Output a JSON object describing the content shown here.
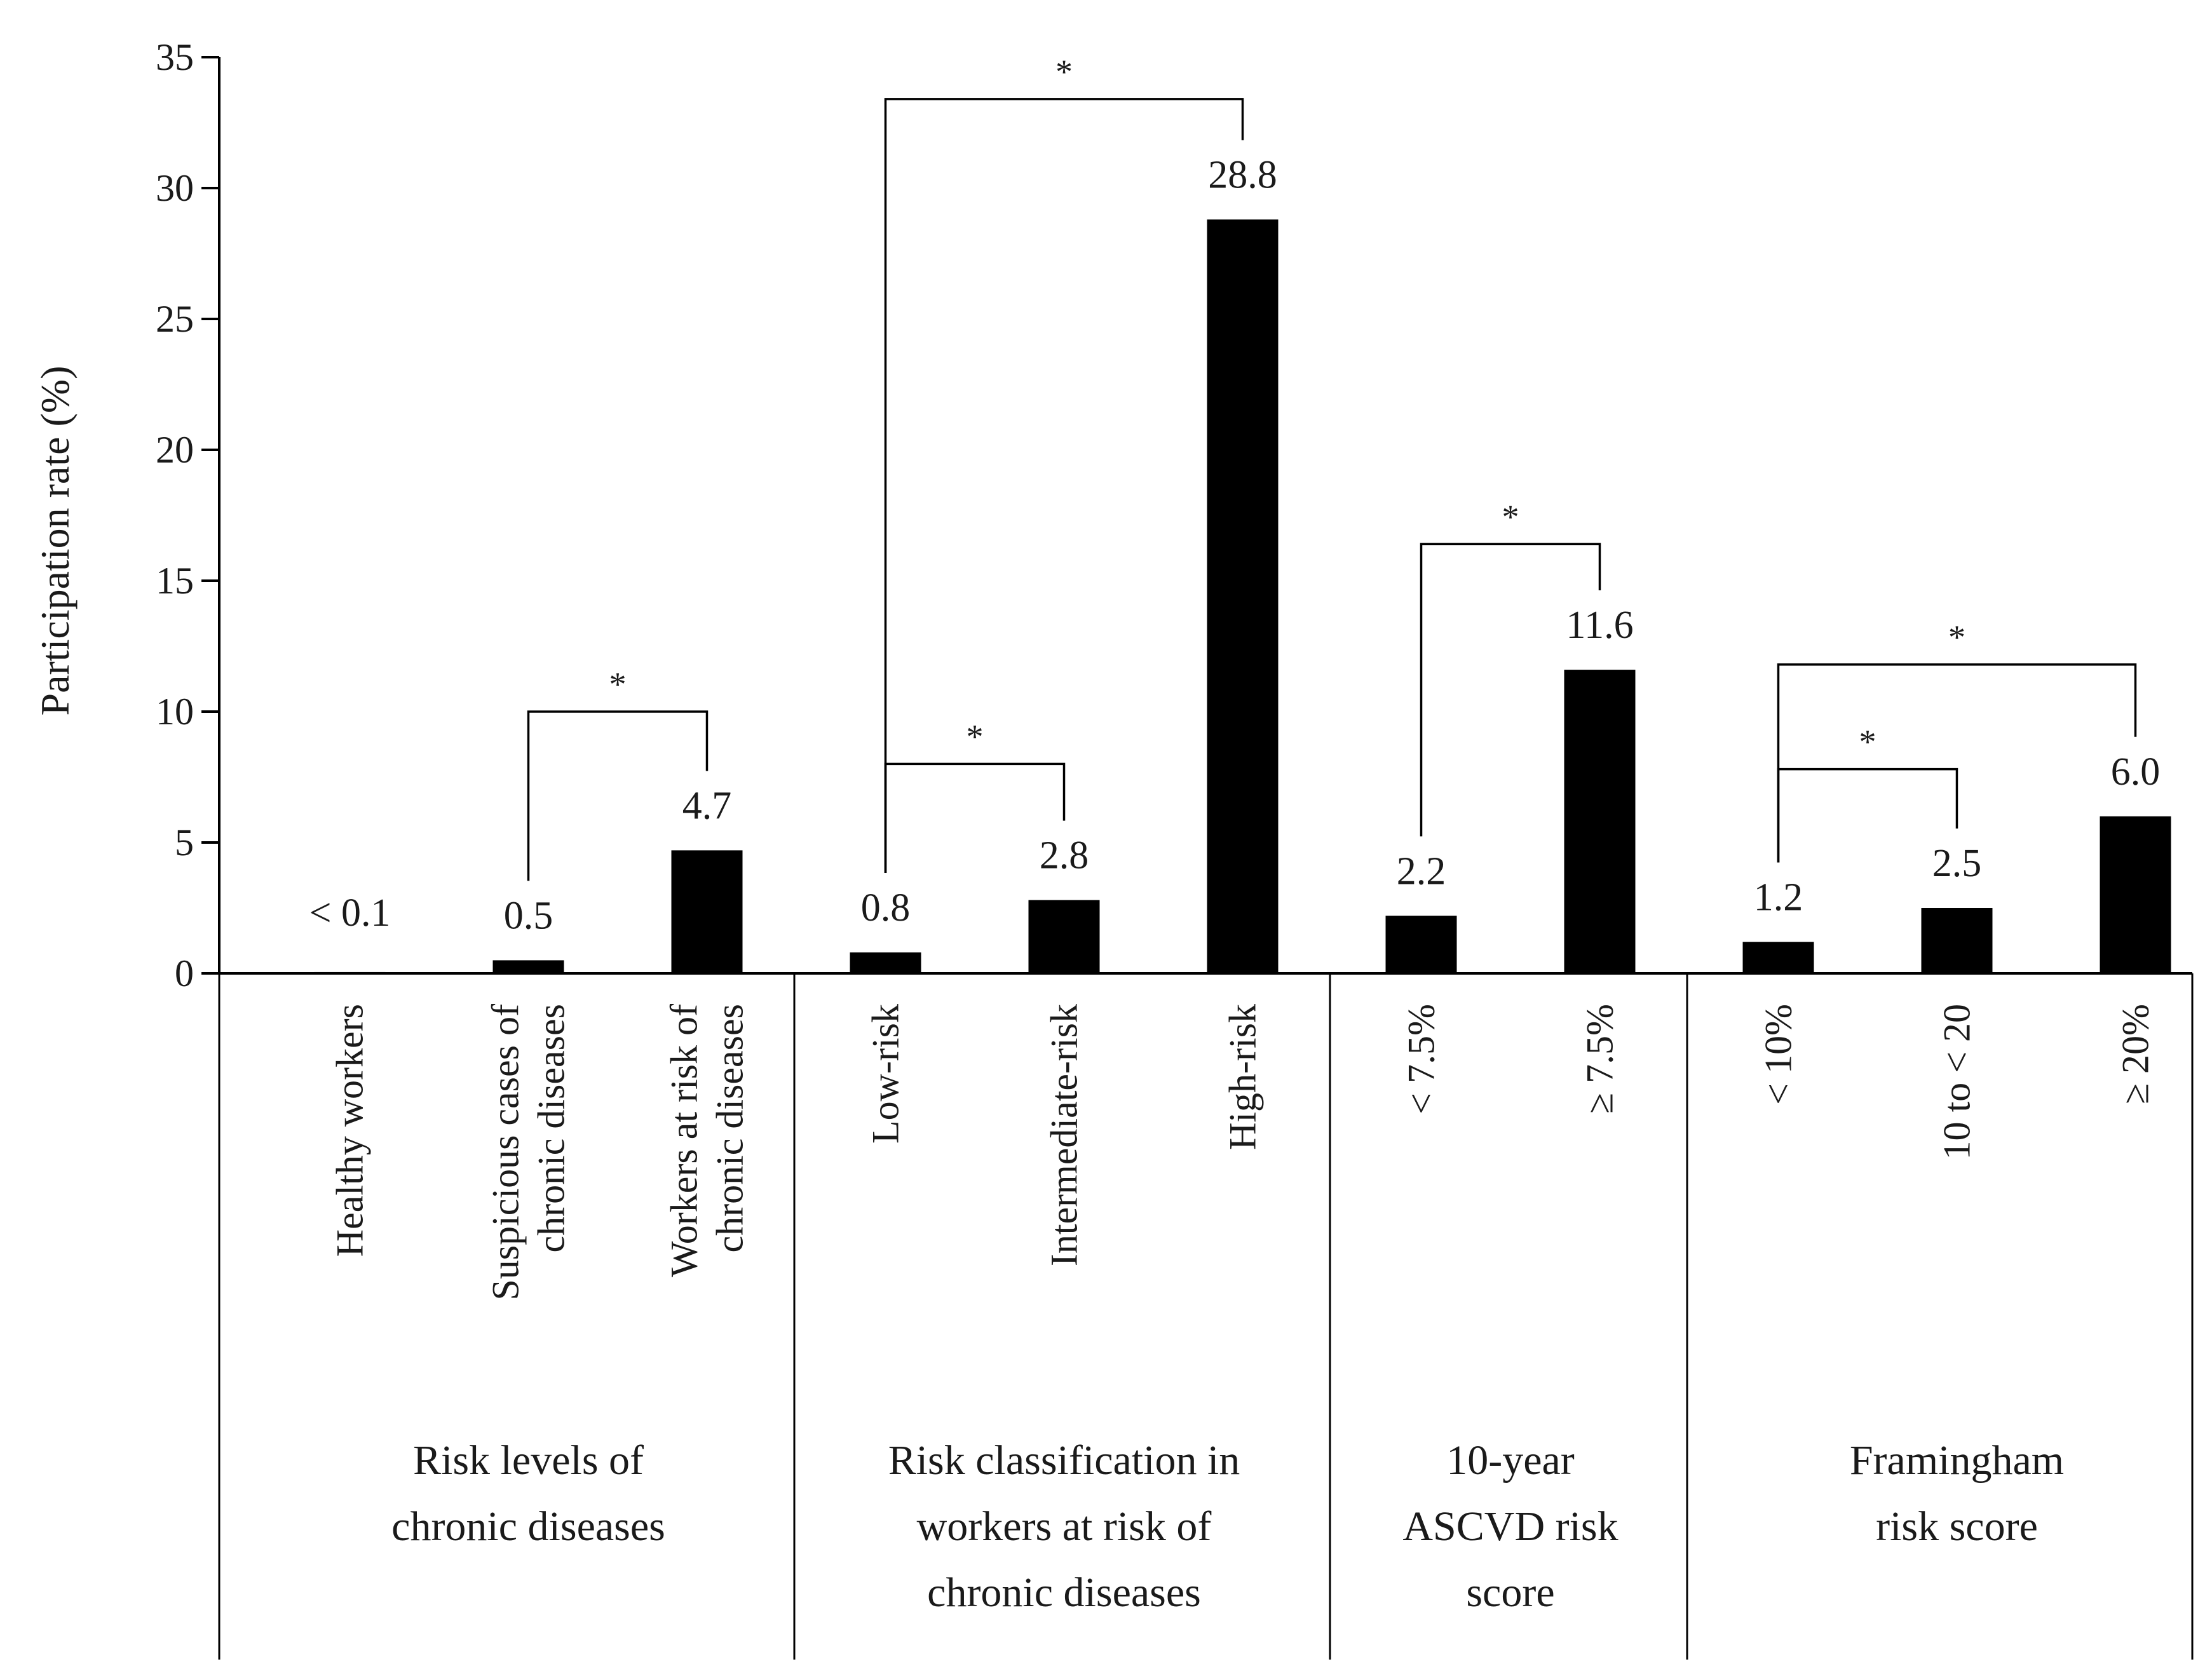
{
  "chart_data": {
    "type": "bar",
    "ylabel": "Participation rate (%)",
    "ylim": [
      0,
      35
    ],
    "yticks": [
      0,
      5,
      10,
      15,
      20,
      25,
      30,
      35
    ],
    "groups": [
      {
        "label_lines": [
          "Risk levels of",
          "chronic diseases"
        ],
        "bars": [
          {
            "label_lines": [
              "Healthy workers"
            ],
            "value": 0.05,
            "value_label": "< 0.1"
          },
          {
            "label_lines": [
              "Suspicious cases of",
              "chronic diseases"
            ],
            "value": 0.5,
            "value_label": "0.5"
          },
          {
            "label_lines": [
              "Workers at risk of",
              "chronic diseases"
            ],
            "value": 4.7,
            "value_label": "4.7"
          }
        ]
      },
      {
        "label_lines": [
          "Risk classification in",
          "workers at risk of",
          "chronic diseases"
        ],
        "bars": [
          {
            "label_lines": [
              "Low-risk"
            ],
            "value": 0.8,
            "value_label": "0.8"
          },
          {
            "label_lines": [
              "Intermediate-risk"
            ],
            "value": 2.8,
            "value_label": "2.8"
          },
          {
            "label_lines": [
              "High-risk"
            ],
            "value": 28.8,
            "value_label": "28.8"
          }
        ]
      },
      {
        "label_lines": [
          "10-year",
          "ASCVD risk",
          "score"
        ],
        "bars": [
          {
            "label_lines": [
              "< 7.5%"
            ],
            "value": 2.2,
            "value_label": "2.2"
          },
          {
            "label_lines": [
              "≥ 7.5%"
            ],
            "value": 11.6,
            "value_label": "11.6"
          }
        ]
      },
      {
        "label_lines": [
          "Framingham",
          "risk score"
        ],
        "bars": [
          {
            "label_lines": [
              "< 10%"
            ],
            "value": 1.2,
            "value_label": "1.2"
          },
          {
            "label_lines": [
              "10 to < 20"
            ],
            "value": 2.5,
            "value_label": "2.5"
          },
          {
            "label_lines": [
              "≥ 20%"
            ],
            "value": 6.0,
            "value_label": "6.0"
          }
        ]
      }
    ],
    "significance": [
      {
        "from": [
          0,
          1
        ],
        "to": [
          0,
          2
        ],
        "level": 10,
        "label": "*"
      },
      {
        "from": [
          1,
          0
        ],
        "to": [
          1,
          1
        ],
        "level": 8,
        "label": "*"
      },
      {
        "from": [
          1,
          0
        ],
        "to": [
          1,
          2
        ],
        "level": 33.4,
        "label": "*"
      },
      {
        "from": [
          2,
          0
        ],
        "to": [
          2,
          1
        ],
        "level": 16.4,
        "label": "*"
      },
      {
        "from": [
          3,
          0
        ],
        "to": [
          3,
          1
        ],
        "level": 7.8,
        "label": "*"
      },
      {
        "from": [
          3,
          0
        ],
        "to": [
          3,
          2
        ],
        "level": 11.8,
        "label": "*"
      }
    ]
  }
}
